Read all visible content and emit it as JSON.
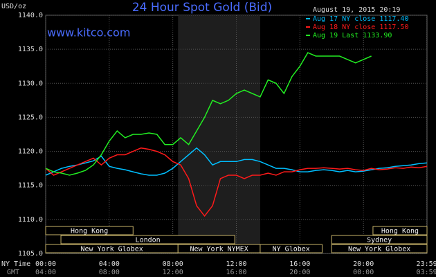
{
  "chart_data": {
    "type": "line",
    "title": "24 Hour Spot Gold (Bid)",
    "watermark": "www.kitco.com",
    "timestamp": "August 19, 2015 20:19",
    "ylabel": "USD/oz",
    "xlabel": "NY Time",
    "x2label": "GMT",
    "xlim": [
      0,
      24
    ],
    "ylim": [
      1105,
      1140
    ],
    "yticks": [
      {
        "value": 1105,
        "label": "1105.0"
      },
      {
        "value": 1110,
        "label": "1110.0"
      },
      {
        "value": 1115,
        "label": "1115.0"
      },
      {
        "value": 1120,
        "label": "1120.0"
      },
      {
        "value": 1125,
        "label": "1125.0"
      },
      {
        "value": 1130,
        "label": "1130.0"
      },
      {
        "value": 1135,
        "label": "1135.0"
      },
      {
        "value": 1140,
        "label": "1140.0"
      }
    ],
    "xticks": [
      {
        "value": 0,
        "label": "00:00"
      },
      {
        "value": 4,
        "label": "04:00"
      },
      {
        "value": 8,
        "label": "08:00"
      },
      {
        "value": 12,
        "label": "12:00"
      },
      {
        "value": 16,
        "label": "16:00"
      },
      {
        "value": 20,
        "label": "20:00"
      },
      {
        "value": 23.983,
        "label": "23:59"
      }
    ],
    "x2ticks": [
      {
        "value": 0,
        "label": "04:00"
      },
      {
        "value": 4,
        "label": "08:00"
      },
      {
        "value": 8,
        "label": "12:00"
      },
      {
        "value": 12,
        "label": "16:00"
      },
      {
        "value": 16,
        "label": "20:00"
      },
      {
        "value": 20,
        "label": "00:00"
      },
      {
        "value": 23.983,
        "label": "03:59"
      }
    ],
    "grid": true,
    "shaded": [
      8.33,
      13.5
    ],
    "x": [
      0,
      0.5,
      1,
      1.5,
      2,
      2.5,
      3,
      3.5,
      4,
      4.5,
      5,
      5.5,
      6,
      6.5,
      7,
      7.5,
      8,
      8.5,
      9,
      9.5,
      10,
      10.5,
      11,
      11.5,
      12,
      12.5,
      13,
      13.5,
      14,
      14.5,
      15,
      15.5,
      16,
      16.5,
      17,
      17.5,
      18,
      18.5,
      19,
      19.5,
      20,
      20.5,
      21,
      21.5,
      22,
      22.5,
      23,
      23.5,
      24
    ],
    "series": [
      {
        "name": "Aug 17 NY close 1117.40",
        "color": "#00bfff",
        "values": [
          1116.5,
          1117,
          1117.5,
          1117.8,
          1118,
          1118.3,
          1118.6,
          1119.3,
          1117.8,
          1117.5,
          1117.3,
          1117,
          1116.7,
          1116.5,
          1116.5,
          1116.8,
          1117.5,
          1118.5,
          1119.5,
          1120.5,
          1119.5,
          1118,
          1118.5,
          1118.5,
          1118.5,
          1118.8,
          1118.8,
          1118.5,
          1118,
          1117.5,
          1117.5,
          1117.3,
          1117,
          1117,
          1117.2,
          1117.3,
          1117.2,
          1117,
          1117.2,
          1117,
          1117.1,
          1117.3,
          1117.5,
          1117.6,
          1117.8,
          1117.9,
          1118,
          1118.2,
          1118.3
        ]
      },
      {
        "name": "Aug 18 NY close 1117.50",
        "color": "#ff1a1a",
        "values": [
          1117.5,
          1116.5,
          1117,
          1117.5,
          1118,
          1118.5,
          1119,
          1118,
          1119,
          1119.5,
          1119.5,
          1120,
          1120.5,
          1120.3,
          1120,
          1119.5,
          1118.5,
          1118,
          1116,
          1112,
          1110.5,
          1112,
          1116,
          1116.5,
          1116.5,
          1116,
          1116.5,
          1116.5,
          1116.8,
          1116.5,
          1117,
          1117,
          1117.3,
          1117.5,
          1117.5,
          1117.6,
          1117.5,
          1117.4,
          1117.5,
          1117.3,
          1117.2,
          1117.5,
          1117.3,
          1117.4,
          1117.6,
          1117.5,
          1117.7,
          1117.6,
          1117.8
        ]
      },
      {
        "name": "Aug 19 Last 1133.90",
        "color": "#22ee22",
        "values": [
          1117.5,
          1117,
          1116.8,
          1116.5,
          1116.8,
          1117.2,
          1118,
          1119.5,
          1121.5,
          1123,
          1122,
          1122.5,
          1122.5,
          1122.7,
          1122.5,
          1121,
          1121,
          1122,
          1121,
          1123,
          1125,
          1127.5,
          1127,
          1127.5,
          1128.5,
          1129,
          1128.5,
          1128,
          1130.5,
          1130,
          1128.5,
          1131,
          1132.5,
          1134.5,
          1134,
          1134,
          1134,
          1134,
          1133.5,
          1133,
          1133.5,
          1134,
          null,
          null,
          null,
          null,
          null,
          null,
          null
        ]
      }
    ],
    "session_rows": [
      [
        {
          "label": "Hong Kong",
          "start": 0,
          "end": 5.5
        },
        {
          "label": "Hong Kong",
          "start": 20.6,
          "end": 24
        }
      ],
      [
        {
          "label": "London",
          "start": 0.96,
          "end": 11.9
        },
        {
          "label": "Sydney",
          "start": 18,
          "end": 24
        }
      ],
      [
        {
          "label": "New York Globex",
          "start": 0,
          "end": 8.33
        },
        {
          "label": "New York NYMEX",
          "start": 8.33,
          "end": 13.5
        },
        {
          "label": "NY Globex",
          "start": 13.5,
          "end": 17.4
        },
        {
          "label": "New York Globex",
          "start": 18,
          "end": 24
        }
      ]
    ]
  }
}
